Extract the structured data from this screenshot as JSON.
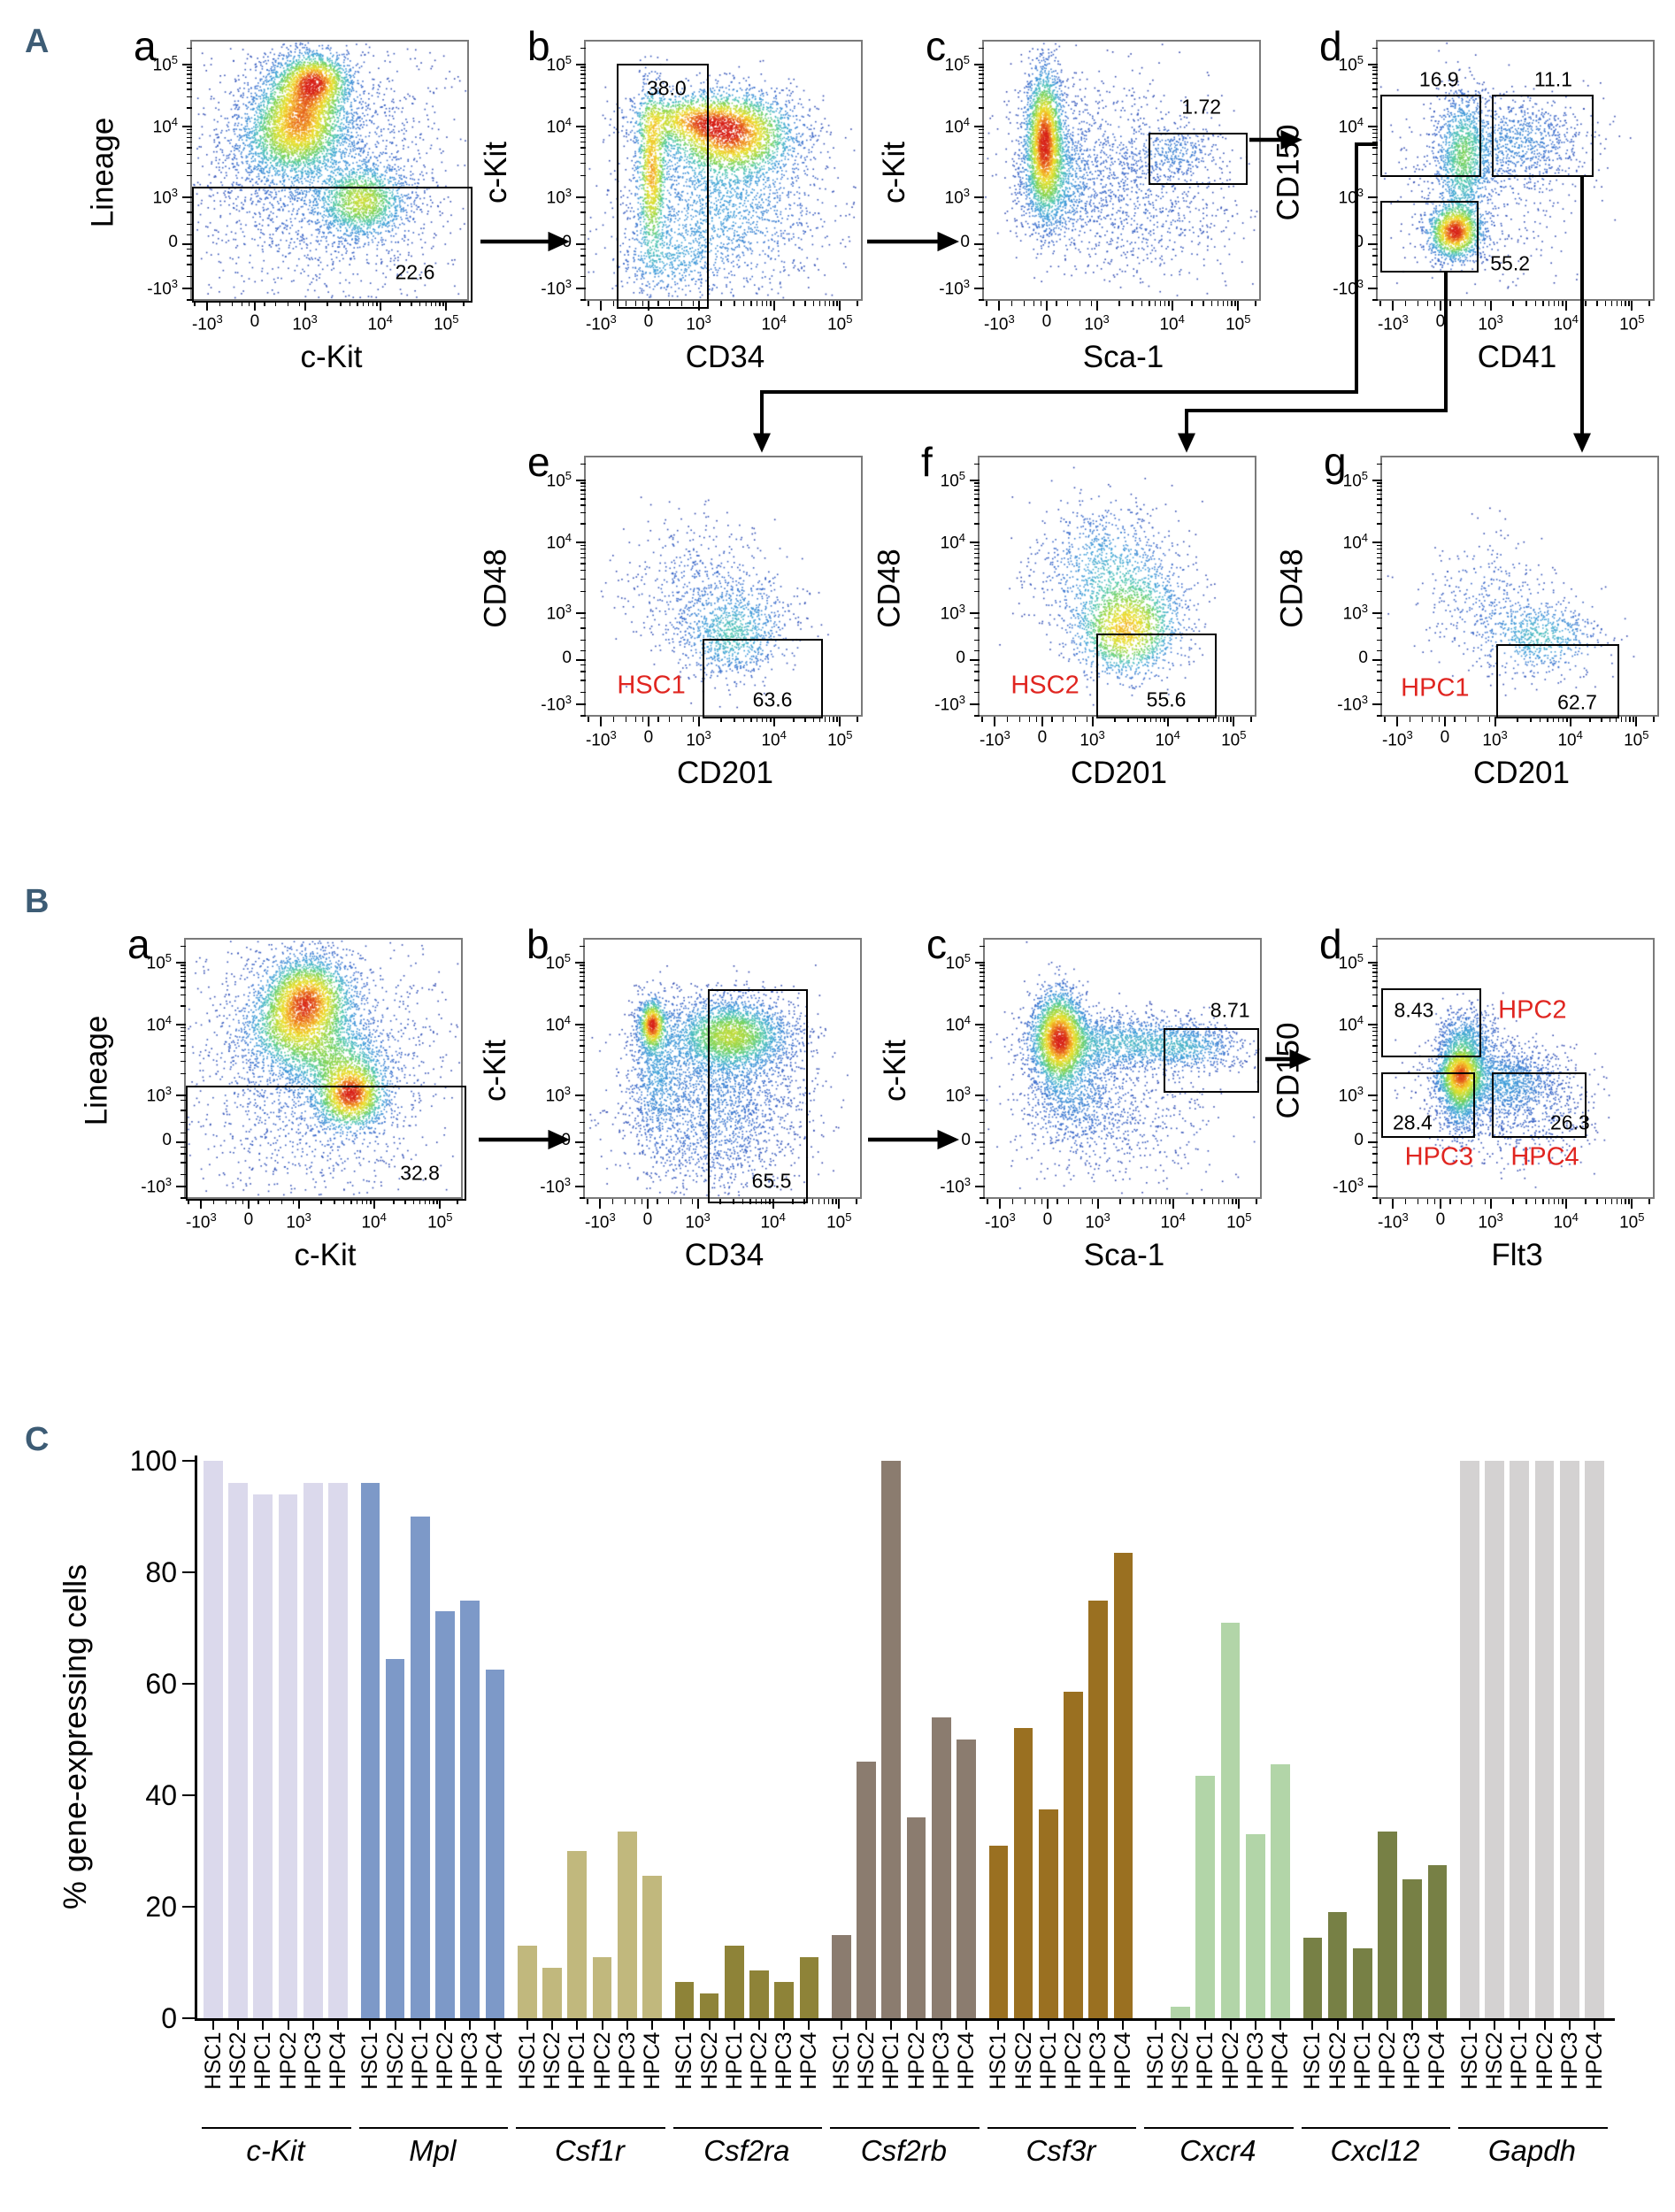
{
  "figure": {
    "panel_a_label": "A",
    "panel_b_label": "B",
    "panel_c_label": "C"
  },
  "colors": {
    "panel_letter": "#3d5c75",
    "red_population_label": "#e02520",
    "gate_border": "#000000",
    "plot_frame": "#7a7a7a"
  },
  "flow_axes": {
    "major_labels": [
      "-10^3",
      "0",
      "10^3",
      "10^4",
      "10^5"
    ],
    "major_fracs": [
      0.055,
      0.225,
      0.405,
      0.675,
      0.912
    ],
    "minor_fracs": [
      0.01,
      0.1,
      0.145,
      0.18,
      0.205,
      0.26,
      0.3,
      0.345,
      0.385,
      0.486,
      0.534,
      0.567,
      0.594,
      0.615,
      0.633,
      0.649,
      0.663,
      0.746,
      0.788,
      0.817,
      0.84,
      0.859,
      0.875,
      0.889,
      0.901,
      0.975
    ]
  },
  "chart_data": [
    {
      "type": "density-scatter",
      "panel": "A",
      "letter": "a",
      "xlabel": "c-Kit",
      "ylabel": "Lineage",
      "intensity": 1,
      "gates": [
        {
          "x": 0.0,
          "y": 0.556,
          "w": 1.005,
          "h": 0.444,
          "label": "22.6",
          "lx": 0.8,
          "ly": 0.885
        }
      ],
      "red_labels": [],
      "clusters": [
        [
          0.4,
          0.28,
          0.085,
          0.105,
          2600
        ],
        [
          0.45,
          0.15,
          0.065,
          0.055,
          1100
        ],
        [
          0.33,
          0.38,
          0.1,
          0.09,
          1000
        ],
        [
          0.62,
          0.62,
          0.085,
          0.075,
          1400
        ],
        [
          0.47,
          0.5,
          0.23,
          0.26,
          2400
        ]
      ]
    },
    {
      "type": "density-scatter",
      "panel": "A",
      "letter": "b",
      "xlabel": "CD34",
      "ylabel": "c-Kit",
      "intensity": 1,
      "gates": [
        {
          "x": 0.111,
          "y": 0.085,
          "w": 0.33,
          "h": 0.94,
          "label": "38.0",
          "lx": 0.29,
          "ly": 0.18
        }
      ],
      "red_labels": [],
      "clusters": [
        [
          0.53,
          0.36,
          0.12,
          0.085,
          2800
        ],
        [
          0.24,
          0.5,
          0.028,
          0.17,
          1100
        ],
        [
          0.37,
          0.3,
          0.11,
          0.05,
          900
        ],
        [
          0.5,
          0.65,
          0.18,
          0.16,
          1700
        ],
        [
          0.3,
          0.85,
          0.1,
          0.08,
          400
        ]
      ]
    },
    {
      "type": "density-scatter",
      "panel": "A",
      "letter": "c",
      "xlabel": "Sca-1",
      "ylabel": "c-Kit",
      "intensity": 1,
      "gates": [
        {
          "x": 0.59,
          "y": 0.35,
          "w": 0.355,
          "h": 0.2,
          "label": "1.72",
          "lx": 0.78,
          "ly": 0.25
        }
      ],
      "red_labels": [],
      "clusters": [
        [
          0.22,
          0.38,
          0.035,
          0.14,
          2600
        ],
        [
          0.26,
          0.55,
          0.07,
          0.12,
          900
        ],
        [
          0.45,
          0.45,
          0.18,
          0.16,
          900
        ],
        [
          0.7,
          0.43,
          0.08,
          0.05,
          260
        ],
        [
          0.6,
          0.7,
          0.18,
          0.12,
          500
        ]
      ]
    },
    {
      "type": "density-scatter",
      "panel": "A",
      "letter": "d",
      "xlabel": "CD41",
      "ylabel": "CD150",
      "intensity": 1,
      "gates": [
        {
          "x": 0.01,
          "y": 0.205,
          "w": 0.36,
          "h": 0.315,
          "label": "16.9",
          "lx": 0.22,
          "ly": 0.145
        },
        {
          "x": 0.41,
          "y": 0.205,
          "w": 0.365,
          "h": 0.315,
          "label": "11.1",
          "lx": 0.63,
          "ly": 0.145
        },
        {
          "x": 0.01,
          "y": 0.61,
          "w": 0.353,
          "h": 0.274,
          "label": "55.2",
          "lx": 0.475,
          "ly": 0.85
        }
      ],
      "red_labels": [],
      "clusters": [
        [
          0.31,
          0.45,
          0.05,
          0.13,
          1300
        ],
        [
          0.28,
          0.74,
          0.05,
          0.055,
          1400
        ],
        [
          0.52,
          0.38,
          0.12,
          0.085,
          700
        ],
        [
          0.4,
          0.55,
          0.18,
          0.18,
          600
        ]
      ]
    },
    {
      "type": "density-scatter",
      "panel": "A",
      "letter": "e",
      "xlabel": "CD201",
      "ylabel": "CD48",
      "intensity": 0.52,
      "gates": [
        {
          "x": 0.42,
          "y": 0.695,
          "w": 0.43,
          "h": 0.305,
          "label": "63.6",
          "lx": 0.67,
          "ly": 0.93
        }
      ],
      "red_labels": [
        {
          "text": "HSC1",
          "x": 0.235,
          "y": 0.875
        }
      ],
      "clusters": [
        [
          0.53,
          0.7,
          0.1,
          0.085,
          800
        ],
        [
          0.4,
          0.5,
          0.13,
          0.14,
          450
        ],
        [
          0.6,
          0.58,
          0.1,
          0.1,
          250
        ]
      ]
    },
    {
      "type": "density-scatter",
      "panel": "A",
      "letter": "f",
      "xlabel": "CD201",
      "ylabel": "CD48",
      "intensity": 0.85,
      "gates": [
        {
          "x": 0.42,
          "y": 0.675,
          "w": 0.43,
          "h": 0.325,
          "label": "55.6",
          "lx": 0.67,
          "ly": 0.93
        }
      ],
      "red_labels": [
        {
          "text": "HSC2",
          "x": 0.235,
          "y": 0.875
        }
      ],
      "clusters": [
        [
          0.53,
          0.68,
          0.095,
          0.09,
          1500
        ],
        [
          0.45,
          0.43,
          0.12,
          0.13,
          900
        ],
        [
          0.6,
          0.55,
          0.1,
          0.1,
          400
        ]
      ]
    },
    {
      "type": "density-scatter",
      "panel": "A",
      "letter": "g",
      "xlabel": "CD201",
      "ylabel": "CD48",
      "intensity": 0.5,
      "gates": [
        {
          "x": 0.41,
          "y": 0.714,
          "w": 0.44,
          "h": 0.286,
          "label": "62.7",
          "lx": 0.7,
          "ly": 0.94
        }
      ],
      "red_labels": [
        {
          "text": "HPC1",
          "x": 0.19,
          "y": 0.885
        }
      ],
      "clusters": [
        [
          0.58,
          0.7,
          0.11,
          0.075,
          650
        ],
        [
          0.38,
          0.55,
          0.13,
          0.12,
          330
        ]
      ]
    },
    {
      "type": "density-scatter",
      "panel": "B",
      "letter": "a",
      "xlabel": "c-Kit",
      "ylabel": "Lineage",
      "intensity": 1,
      "gates": [
        {
          "x": 0.0,
          "y": 0.56,
          "w": 1.005,
          "h": 0.44,
          "label": "32.8",
          "lx": 0.84,
          "ly": 0.895
        }
      ],
      "red_labels": [],
      "clusters": [
        [
          0.44,
          0.23,
          0.085,
          0.085,
          2400
        ],
        [
          0.38,
          0.35,
          0.09,
          0.07,
          900
        ],
        [
          0.6,
          0.6,
          0.065,
          0.07,
          1700
        ],
        [
          0.52,
          0.45,
          0.11,
          0.07,
          800
        ],
        [
          0.47,
          0.48,
          0.22,
          0.26,
          2200
        ]
      ]
    },
    {
      "type": "density-scatter",
      "panel": "B",
      "letter": "b",
      "xlabel": "CD34",
      "ylabel": "c-Kit",
      "intensity": 1,
      "gates": [
        {
          "x": 0.44,
          "y": 0.19,
          "w": 0.36,
          "h": 0.82,
          "label": "65.5",
          "lx": 0.67,
          "ly": 0.925
        }
      ],
      "red_labels": [],
      "clusters": [
        [
          0.53,
          0.37,
          0.115,
          0.075,
          2800
        ],
        [
          0.245,
          0.33,
          0.025,
          0.05,
          700
        ],
        [
          0.26,
          0.5,
          0.05,
          0.15,
          700
        ],
        [
          0.48,
          0.6,
          0.17,
          0.13,
          1500
        ],
        [
          0.45,
          0.82,
          0.15,
          0.1,
          500
        ]
      ]
    },
    {
      "type": "density-scatter",
      "panel": "B",
      "letter": "c",
      "xlabel": "Sca-1",
      "ylabel": "c-Kit",
      "intensity": 1,
      "gates": [
        {
          "x": 0.64,
          "y": 0.34,
          "w": 0.345,
          "h": 0.247,
          "label": "8.71",
          "lx": 0.88,
          "ly": 0.27
        }
      ],
      "red_labels": [],
      "clusters": [
        [
          0.27,
          0.38,
          0.05,
          0.095,
          2600
        ],
        [
          0.5,
          0.4,
          0.17,
          0.055,
          1400
        ],
        [
          0.75,
          0.42,
          0.1,
          0.05,
          500
        ],
        [
          0.33,
          0.58,
          0.09,
          0.12,
          800
        ],
        [
          0.5,
          0.7,
          0.2,
          0.12,
          500
        ]
      ]
    },
    {
      "type": "density-scatter",
      "panel": "B",
      "letter": "d",
      "xlabel": "Flt3",
      "ylabel": "CD150",
      "intensity": 0.95,
      "gates": [
        {
          "x": 0.013,
          "y": 0.185,
          "w": 0.357,
          "h": 0.265,
          "label": "8.43",
          "lx": 0.13,
          "ly": 0.27
        },
        {
          "x": 0.013,
          "y": 0.51,
          "w": 0.337,
          "h": 0.25,
          "label": "28.4",
          "lx": 0.125,
          "ly": 0.7
        },
        {
          "x": 0.41,
          "y": 0.51,
          "w": 0.34,
          "h": 0.25,
          "label": "26.3",
          "lx": 0.69,
          "ly": 0.7
        }
      ],
      "red_labels": [
        {
          "text": "HPC2",
          "x": 0.555,
          "y": 0.27
        },
        {
          "text": "HPC3",
          "x": 0.22,
          "y": 0.835
        },
        {
          "text": "HPC4",
          "x": 0.6,
          "y": 0.835
        }
      ],
      "clusters": [
        [
          0.3,
          0.55,
          0.04,
          0.1,
          1500
        ],
        [
          0.3,
          0.52,
          0.045,
          0.05,
          800
        ],
        [
          0.45,
          0.55,
          0.12,
          0.075,
          1400
        ],
        [
          0.33,
          0.38,
          0.06,
          0.06,
          500
        ],
        [
          0.52,
          0.7,
          0.14,
          0.09,
          400
        ]
      ]
    },
    {
      "type": "bar",
      "ylabel": "% gene-expressing cells",
      "ylim": [
        0,
        100
      ],
      "yticks": [
        0,
        20,
        40,
        60,
        80,
        100
      ],
      "categories": [
        "HSC1",
        "HSC2",
        "HPC1",
        "HPC2",
        "HPC3",
        "HPC4"
      ],
      "groups": [
        {
          "gene": "c-Kit",
          "color": "#dbd9ec",
          "values": [
            100,
            96,
            94,
            94,
            96,
            96
          ]
        },
        {
          "gene": "Mpl",
          "color": "#7d99c8",
          "values": [
            96,
            64.5,
            90,
            73,
            75,
            62.5
          ]
        },
        {
          "gene": "Csf1r",
          "color": "#c1b87d",
          "values": [
            13,
            9,
            30,
            11,
            33.5,
            25.5
          ]
        },
        {
          "gene": "Csf2ra",
          "color": "#8e8338",
          "values": [
            6.5,
            4.5,
            13,
            8.5,
            6.5,
            11
          ]
        },
        {
          "gene": "Csf2rb",
          "color": "#8b7c6f",
          "values": [
            15,
            46,
            100,
            36,
            54,
            50
          ]
        },
        {
          "gene": "Csf3r",
          "color": "#9a7021",
          "values": [
            31,
            52,
            37.5,
            58.5,
            75,
            83.5
          ]
        },
        {
          "gene": "Cxcr4",
          "color": "#b2d5a8",
          "values": [
            0,
            2,
            43.5,
            71,
            33,
            45.5
          ]
        },
        {
          "gene": "Cxcl12",
          "color": "#778045",
          "values": [
            14.5,
            19,
            12.5,
            33.5,
            25,
            27.5
          ]
        },
        {
          "gene": "Gapdh",
          "color": "#d4d2d2",
          "values": [
            100,
            100,
            100,
            100,
            100,
            100
          ]
        }
      ]
    }
  ]
}
